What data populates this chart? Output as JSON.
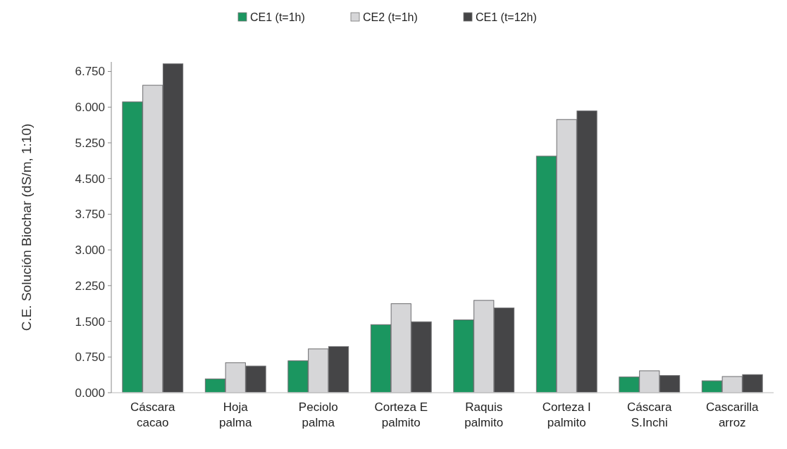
{
  "chart_data": {
    "type": "bar",
    "ylabel": "C.E. Solución Biochar (dS/m, 1:10)",
    "categories": [
      "Cáscara cacao",
      "Hoja palma",
      "Peciolo palma",
      "Corteza E palmito",
      "Raquis palmito",
      "Corteza I palmito",
      "Cáscara S.Inchi",
      "Cascarilla arroz"
    ],
    "series": [
      {
        "name": "CE1 (t=1h)",
        "color": "#1b9660",
        "values": [
          6.11,
          0.29,
          0.67,
          1.43,
          1.53,
          4.97,
          0.33,
          0.25
        ]
      },
      {
        "name": "CE2 (t=1h)",
        "color": "#d6d6d8",
        "values": [
          6.46,
          0.63,
          0.92,
          1.87,
          1.94,
          5.74,
          0.46,
          0.34
        ]
      },
      {
        "name": "CE1 (t=12h)",
        "color": "#454547",
        "values": [
          6.91,
          0.56,
          0.97,
          1.49,
          1.78,
          5.92,
          0.36,
          0.38
        ]
      }
    ],
    "ylim": [
      0,
      6.95
    ],
    "yticks": [
      {
        "value": 0,
        "label": "0.000"
      },
      {
        "value": 0.75,
        "label": "0.750"
      },
      {
        "value": 1.5,
        "label": "1.500"
      },
      {
        "value": 2.25,
        "label": "2.250"
      },
      {
        "value": 3,
        "label": "3.000"
      },
      {
        "value": 3.75,
        "label": "3.750"
      },
      {
        "value": 4.5,
        "label": "4.500"
      },
      {
        "value": 5.25,
        "label": "5.250"
      },
      {
        "value": 6,
        "label": "6.000"
      },
      {
        "value": 6.75,
        "label": "6.750"
      }
    ],
    "legend": "top",
    "grid": false
  }
}
